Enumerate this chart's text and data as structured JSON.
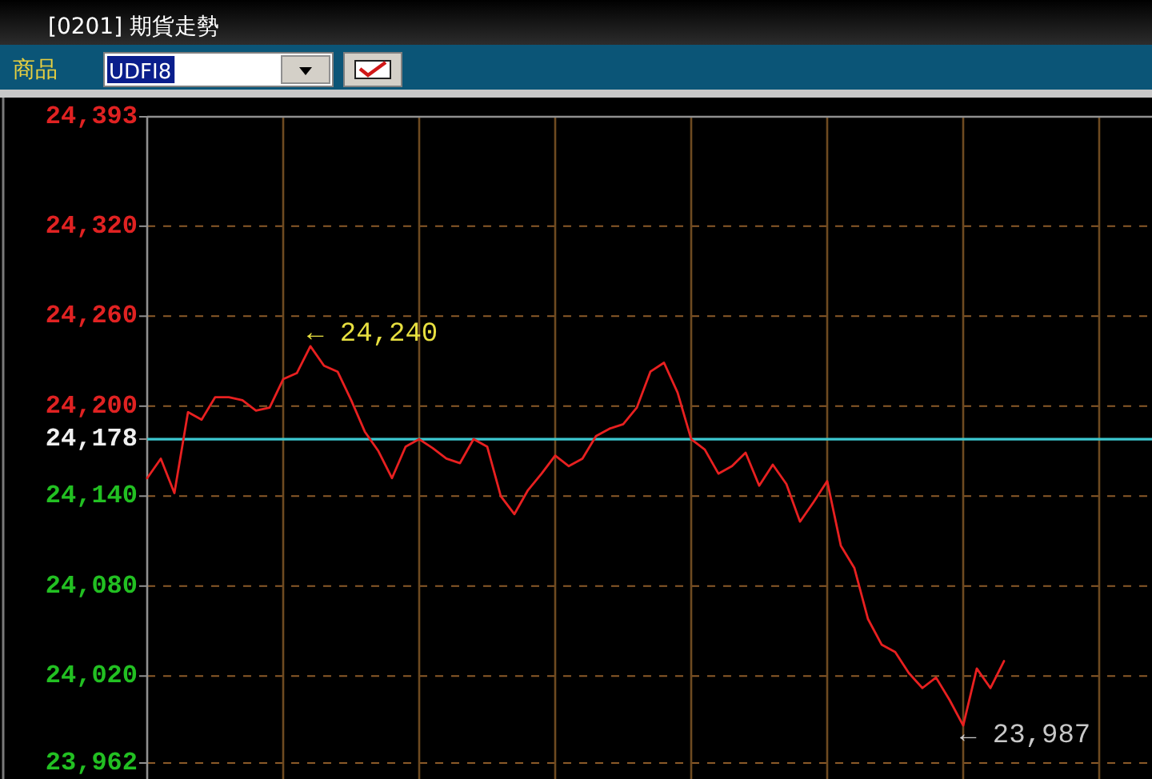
{
  "chart_data": {
    "type": "line",
    "title": "[0201] 期貨走勢",
    "annotations": [
      "商品",
      "UDFI8",
      "← 24,240",
      "← 23,987"
    ],
    "categories": [
      null,
      null,
      null,
      null,
      null,
      null,
      null,
      null,
      null,
      null,
      null,
      null,
      null,
      null,
      null,
      null,
      null,
      null,
      null,
      null,
      null,
      null,
      null,
      null,
      null,
      null,
      null,
      null,
      null,
      null,
      null,
      null,
      null,
      null,
      null,
      null,
      null,
      null,
      null,
      null,
      null,
      null,
      null,
      null,
      null,
      null,
      null,
      null,
      null,
      null,
      null,
      null,
      null,
      null,
      null,
      null,
      null,
      null,
      null,
      null,
      null,
      null,
      null,
      null,
      null,
      null,
      null,
      null,
      null,
      null,
      null,
      null,
      null,
      null
    ],
    "color": "#e82020",
    "values": [
      24152,
      24165,
      24142,
      24196,
      24191,
      24206,
      24206,
      24204,
      24197,
      24199,
      24218,
      24222,
      24240,
      24227,
      24223,
      24204,
      24183,
      24170,
      24152,
      24173,
      24178,
      24172,
      24165,
      24162,
      24178,
      24173,
      24140,
      24128,
      24144,
      24155,
      24167,
      24160,
      24165,
      24180,
      24185,
      24188,
      24199,
      24223,
      24229,
      24209,
      24178,
      24171,
      24155,
      24160,
      24169,
      24147,
      24161,
      24148,
      24123,
      24136,
      24150,
      24107,
      24092,
      24058,
      24041,
      24036,
      24022,
      24012,
      24019,
      24004,
      23987,
      24025,
      24012,
      24030,
      null,
      null,
      null,
      null,
      null,
      null,
      null,
      null,
      null,
      null
    ],
    "ylim": [
      23962,
      24393
    ],
    "yticks": [
      {
        "value": 24393,
        "label": "24,393"
      },
      {
        "value": 24320,
        "label": "24,320"
      },
      {
        "value": 24260,
        "label": "24,260"
      },
      {
        "value": 24200,
        "label": "24,200"
      },
      {
        "value": 24178,
        "label": "24,178"
      },
      {
        "value": 24140,
        "label": "24,140"
      },
      {
        "value": 24080,
        "label": "24,080"
      },
      {
        "value": 24020,
        "label": "24,020"
      },
      {
        "value": 23962,
        "label": "23,962"
      }
    ],
    "ref_lines": [
      {
        "axis": "y",
        "value": 24178,
        "color": "#3cc8d0"
      }
    ],
    "grid": true,
    "marker": "none",
    "line_style": "solid"
  }
}
